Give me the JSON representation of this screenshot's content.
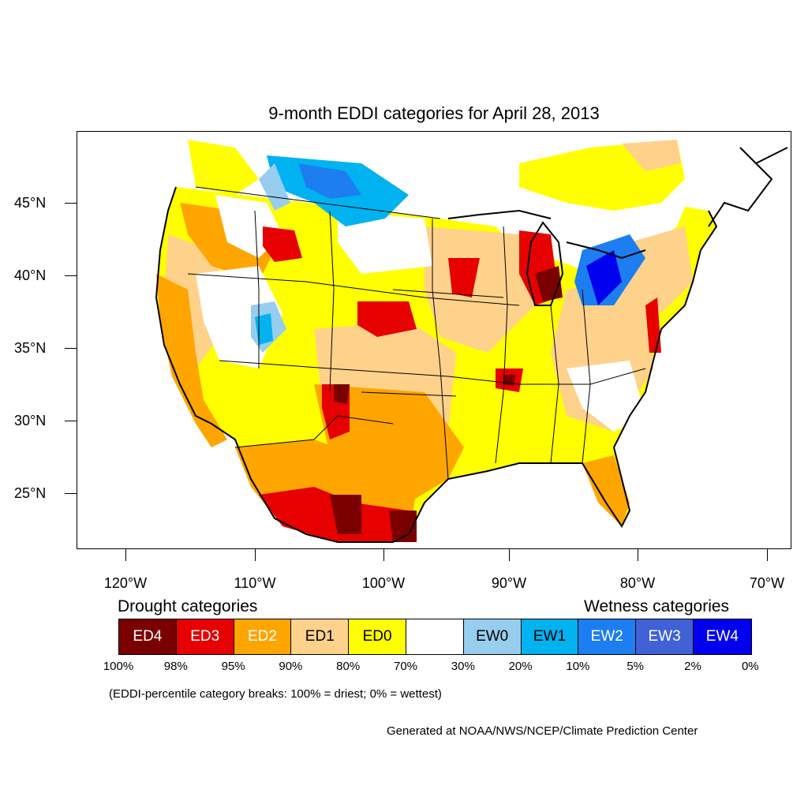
{
  "title": "9-month EDDI categories for April 28, 2013",
  "y_axis_labels": [
    "45°N",
    "40°N",
    "35°N",
    "30°N",
    "25°N"
  ],
  "x_axis_labels": [
    "120°W",
    "110°W",
    "100°W",
    "90°W",
    "80°W",
    "70°W"
  ],
  "drought_title": "Drought categories",
  "wetness_title": "Wetness categories",
  "legend": [
    {
      "label": "ED4",
      "color": "#7a0000",
      "text_color": "#ffffff"
    },
    {
      "label": "ED3",
      "color": "#e60000",
      "text_color": "#ffffff"
    },
    {
      "label": "ED2",
      "color": "#ffa500",
      "text_color": "#ffffff"
    },
    {
      "label": "ED1",
      "color": "#fed28b",
      "text_color": "#000000"
    },
    {
      "label": "ED0",
      "color": "#ffff00",
      "text_color": "#000000"
    },
    {
      "label": "",
      "color": "#ffffff",
      "text_color": "#000000"
    },
    {
      "label": "EW0",
      "color": "#97cdee",
      "text_color": "#000000"
    },
    {
      "label": "EW1",
      "color": "#00b2ef",
      "text_color": "#000000"
    },
    {
      "label": "EW2",
      "color": "#1c7ef0",
      "text_color": "#ffffff"
    },
    {
      "label": "EW3",
      "color": "#4062d6",
      "text_color": "#ffffff"
    },
    {
      "label": "EW4",
      "color": "#0000ee",
      "text_color": "#ffffff"
    }
  ],
  "percent_breaks": [
    "100%",
    "98%",
    "95%",
    "90%",
    "80%",
    "70%",
    "30%",
    "20%",
    "10%",
    "5%",
    "2%",
    "0%"
  ],
  "note": "(EDDI-percentile category breaks: 100% = driest; 0% = wettest)",
  "credit": "Generated at NOAA/NWS/NCEP/Climate Prediction Center"
}
